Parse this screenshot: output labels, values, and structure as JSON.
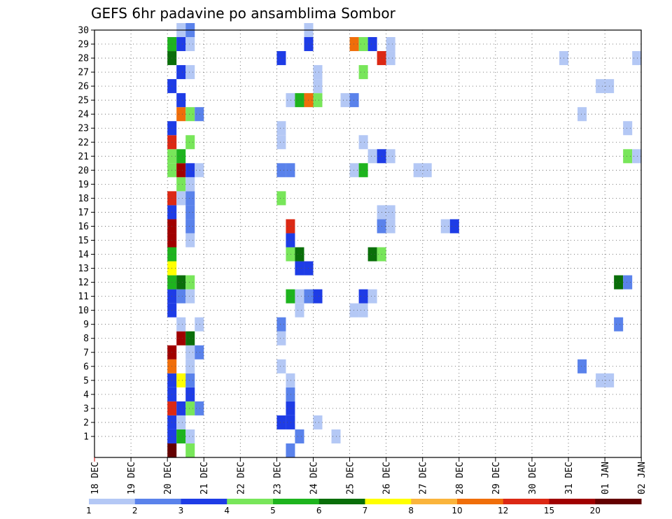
{
  "chart_data": {
    "type": "heatmap",
    "title": "GEFS 6hr padavine po ansamblima Sombor",
    "x_tick_labels": [
      "18 DEC",
      "19 DEC",
      "20 DEC",
      "21 DEC",
      "22 DEC",
      "23 DEC",
      "24 DEC",
      "25 DEC",
      "26 DEC",
      "27 DEC",
      "28 DEC",
      "29 DEC",
      "30 DEC",
      "31 DEC",
      "01 JAN",
      "02 JAN"
    ],
    "y_tick_labels": [
      "1",
      "2",
      "3",
      "4",
      "5",
      "6",
      "7",
      "8",
      "9",
      "10",
      "11",
      "12",
      "13",
      "14",
      "15",
      "16",
      "17",
      "18",
      "19",
      "20",
      "21",
      "22",
      "23",
      "24",
      "25",
      "26",
      "27",
      "28",
      "29",
      "30"
    ],
    "x_unit": "6h steps from 18 DEC 00Z",
    "y_range": [
      0,
      30
    ],
    "grid": true,
    "colorbar": {
      "labels": [
        "1",
        "2",
        "3",
        "4",
        "5",
        "6",
        "7",
        "8",
        "10",
        "12",
        "15",
        "20"
      ],
      "colors": [
        "#b4c8f5",
        "#5a82eb",
        "#1e3ce6",
        "#78e65a",
        "#1eb41e",
        "#0a6e0a",
        "#ffff00",
        "#fab43c",
        "#f06e0a",
        "#dc2814",
        "#a00000",
        "#640000"
      ]
    },
    "cells": [
      {
        "x": 8,
        "m": 0,
        "c": 12
      },
      {
        "x": 8,
        "m": 1,
        "c": 3
      },
      {
        "x": 9,
        "m": 1,
        "c": 5
      },
      {
        "x": 10,
        "m": 1,
        "c": 1
      },
      {
        "x": 10,
        "m": 0,
        "c": 4
      },
      {
        "x": 8,
        "m": 2,
        "c": 3
      },
      {
        "x": 9,
        "m": 2,
        "c": 1
      },
      {
        "x": 8,
        "m": 3,
        "c": 10
      },
      {
        "x": 9,
        "m": 3,
        "c": 3
      },
      {
        "x": 10,
        "m": 3,
        "c": 4
      },
      {
        "x": 11,
        "m": 3,
        "c": 2
      },
      {
        "x": 8,
        "m": 4,
        "c": 3
      },
      {
        "x": 10,
        "m": 4,
        "c": 3
      },
      {
        "x": 8,
        "m": 5,
        "c": 3
      },
      {
        "x": 9,
        "m": 5,
        "c": 7
      },
      {
        "x": 10,
        "m": 5,
        "c": 2
      },
      {
        "x": 8,
        "m": 6,
        "c": 9
      },
      {
        "x": 10,
        "m": 6,
        "c": 1
      },
      {
        "x": 8,
        "m": 7,
        "c": 11
      },
      {
        "x": 10,
        "m": 7,
        "c": 1
      },
      {
        "x": 11,
        "m": 7,
        "c": 2
      },
      {
        "x": 9,
        "m": 8,
        "c": 11
      },
      {
        "x": 10,
        "m": 8,
        "c": 6
      },
      {
        "x": 9,
        "m": 9,
        "c": 1
      },
      {
        "x": 11,
        "m": 9,
        "c": 1
      },
      {
        "x": 8,
        "m": 10,
        "c": 3
      },
      {
        "x": 8,
        "m": 11,
        "c": 3
      },
      {
        "x": 9,
        "m": 11,
        "c": 2
      },
      {
        "x": 10,
        "m": 11,
        "c": 1
      },
      {
        "x": 8,
        "m": 12,
        "c": 5
      },
      {
        "x": 9,
        "m": 12,
        "c": 6
      },
      {
        "x": 10,
        "m": 12,
        "c": 4
      },
      {
        "x": 8,
        "m": 13,
        "c": 7
      },
      {
        "x": 8,
        "m": 14,
        "c": 5
      },
      {
        "x": 8,
        "m": 15,
        "c": 11
      },
      {
        "x": 10,
        "m": 15,
        "c": 1
      },
      {
        "x": 8,
        "m": 16,
        "c": 11
      },
      {
        "x": 10,
        "m": 16,
        "c": 2
      },
      {
        "x": 8,
        "m": 17,
        "c": 3
      },
      {
        "x": 10,
        "m": 17,
        "c": 2
      },
      {
        "x": 8,
        "m": 18,
        "c": 10
      },
      {
        "x": 9,
        "m": 18,
        "c": 1
      },
      {
        "x": 10,
        "m": 18,
        "c": 2
      },
      {
        "x": 9,
        "m": 19,
        "c": 4
      },
      {
        "x": 10,
        "m": 19,
        "c": 1
      },
      {
        "x": 8,
        "m": 20,
        "c": 4
      },
      {
        "x": 9,
        "m": 20,
        "c": 11
      },
      {
        "x": 10,
        "m": 20,
        "c": 3
      },
      {
        "x": 11,
        "m": 20,
        "c": 1
      },
      {
        "x": 8,
        "m": 21,
        "c": 4
      },
      {
        "x": 9,
        "m": 21,
        "c": 5
      },
      {
        "x": 8,
        "m": 22,
        "c": 10
      },
      {
        "x": 10,
        "m": 22,
        "c": 4
      },
      {
        "x": 8,
        "m": 23,
        "c": 3
      },
      {
        "x": 9,
        "m": 24,
        "c": 9
      },
      {
        "x": 10,
        "m": 24,
        "c": 4
      },
      {
        "x": 11,
        "m": 24,
        "c": 2
      },
      {
        "x": 9,
        "m": 25,
        "c": 3
      },
      {
        "x": 8,
        "m": 26,
        "c": 3
      },
      {
        "x": 9,
        "m": 27,
        "c": 3
      },
      {
        "x": 10,
        "m": 27,
        "c": 1
      },
      {
        "x": 8,
        "m": 28,
        "c": 6
      },
      {
        "x": 8,
        "m": 29,
        "c": 5
      },
      {
        "x": 9,
        "m": 29,
        "c": 3
      },
      {
        "x": 10,
        "m": 29,
        "c": 1
      },
      {
        "x": 9,
        "m": 30,
        "c": 1
      },
      {
        "x": 10,
        "m": 30,
        "c": 2
      },
      {
        "x": 21,
        "m": 0,
        "c": 2
      },
      {
        "x": 22,
        "m": 1,
        "c": 2
      },
      {
        "x": 26,
        "m": 1,
        "c": 1
      },
      {
        "x": 20,
        "m": 2,
        "c": 3
      },
      {
        "x": 21,
        "m": 2,
        "c": 3
      },
      {
        "x": 21,
        "m": 3,
        "c": 3
      },
      {
        "x": 21,
        "m": 4,
        "c": 2
      },
      {
        "x": 21,
        "m": 5,
        "c": 1
      },
      {
        "x": 20,
        "m": 6,
        "c": 1
      },
      {
        "x": 20,
        "m": 8,
        "c": 1
      },
      {
        "x": 20,
        "m": 9,
        "c": 2
      },
      {
        "x": 22,
        "m": 10,
        "c": 1
      },
      {
        "x": 21,
        "m": 11,
        "c": 5
      },
      {
        "x": 22,
        "m": 11,
        "c": 1
      },
      {
        "x": 23,
        "m": 11,
        "c": 2
      },
      {
        "x": 24,
        "m": 11,
        "c": 3
      },
      {
        "x": 22,
        "m": 13,
        "c": 3
      },
      {
        "x": 23,
        "m": 13,
        "c": 3
      },
      {
        "x": 21,
        "m": 14,
        "c": 4
      },
      {
        "x": 22,
        "m": 14,
        "c": 6
      },
      {
        "x": 21,
        "m": 15,
        "c": 3
      },
      {
        "x": 21,
        "m": 16,
        "c": 10
      },
      {
        "x": 20,
        "m": 18,
        "c": 4
      },
      {
        "x": 20,
        "m": 20,
        "c": 2
      },
      {
        "x": 21,
        "m": 20,
        "c": 2
      },
      {
        "x": 20,
        "m": 22,
        "c": 1
      },
      {
        "x": 20,
        "m": 23,
        "c": 1
      },
      {
        "x": 21,
        "m": 25,
        "c": 1
      },
      {
        "x": 22,
        "m": 25,
        "c": 5
      },
      {
        "x": 23,
        "m": 25,
        "c": 9
      },
      {
        "x": 24,
        "m": 25,
        "c": 4
      },
      {
        "x": 20,
        "m": 28,
        "c": 3
      },
      {
        "x": 23,
        "m": 29,
        "c": 3
      },
      {
        "x": 23,
        "m": 30,
        "c": 1
      },
      {
        "x": 24,
        "m": 27,
        "c": 1
      },
      {
        "x": 24,
        "m": 26,
        "c": 1
      },
      {
        "x": 24,
        "m": 2,
        "c": 1
      },
      {
        "x": 28,
        "m": 10,
        "c": 1
      },
      {
        "x": 29,
        "m": 10,
        "c": 1
      },
      {
        "x": 29,
        "m": 11,
        "c": 3
      },
      {
        "x": 30,
        "m": 11,
        "c": 1
      },
      {
        "x": 30,
        "m": 14,
        "c": 6
      },
      {
        "x": 31,
        "m": 14,
        "c": 4
      },
      {
        "x": 31,
        "m": 16,
        "c": 2
      },
      {
        "x": 32,
        "m": 16,
        "c": 1
      },
      {
        "x": 31,
        "m": 17,
        "c": 1
      },
      {
        "x": 32,
        "m": 17,
        "c": 1
      },
      {
        "x": 28,
        "m": 20,
        "c": 1
      },
      {
        "x": 29,
        "m": 20,
        "c": 5
      },
      {
        "x": 30,
        "m": 21,
        "c": 1
      },
      {
        "x": 31,
        "m": 21,
        "c": 3
      },
      {
        "x": 32,
        "m": 21,
        "c": 1
      },
      {
        "x": 29,
        "m": 22,
        "c": 1
      },
      {
        "x": 27,
        "m": 25,
        "c": 1
      },
      {
        "x": 28,
        "m": 25,
        "c": 2
      },
      {
        "x": 29,
        "m": 27,
        "c": 4
      },
      {
        "x": 31,
        "m": 28,
        "c": 10
      },
      {
        "x": 32,
        "m": 28,
        "c": 1
      },
      {
        "x": 28,
        "m": 29,
        "c": 9
      },
      {
        "x": 29,
        "m": 29,
        "c": 4
      },
      {
        "x": 30,
        "m": 29,
        "c": 3
      },
      {
        "x": 32,
        "m": 29,
        "c": 1
      },
      {
        "x": 35,
        "m": 20,
        "c": 1
      },
      {
        "x": 36,
        "m": 20,
        "c": 1
      },
      {
        "x": 38,
        "m": 16,
        "c": 1
      },
      {
        "x": 39,
        "m": 16,
        "c": 3
      },
      {
        "x": 53,
        "m": 6,
        "c": 2
      },
      {
        "x": 55,
        "m": 5,
        "c": 1
      },
      {
        "x": 56,
        "m": 5,
        "c": 1
      },
      {
        "x": 57,
        "m": 9,
        "c": 2
      },
      {
        "x": 57,
        "m": 12,
        "c": 6
      },
      {
        "x": 58,
        "m": 12,
        "c": 2
      },
      {
        "x": 53,
        "m": 24,
        "c": 1
      },
      {
        "x": 58,
        "m": 23,
        "c": 1
      },
      {
        "x": 55,
        "m": 26,
        "c": 1
      },
      {
        "x": 56,
        "m": 26,
        "c": 1
      },
      {
        "x": 58,
        "m": 21,
        "c": 4
      },
      {
        "x": 59,
        "m": 21,
        "c": 1
      },
      {
        "x": 51,
        "m": 28,
        "c": 1
      },
      {
        "x": 59,
        "m": 28,
        "c": 1
      }
    ]
  }
}
